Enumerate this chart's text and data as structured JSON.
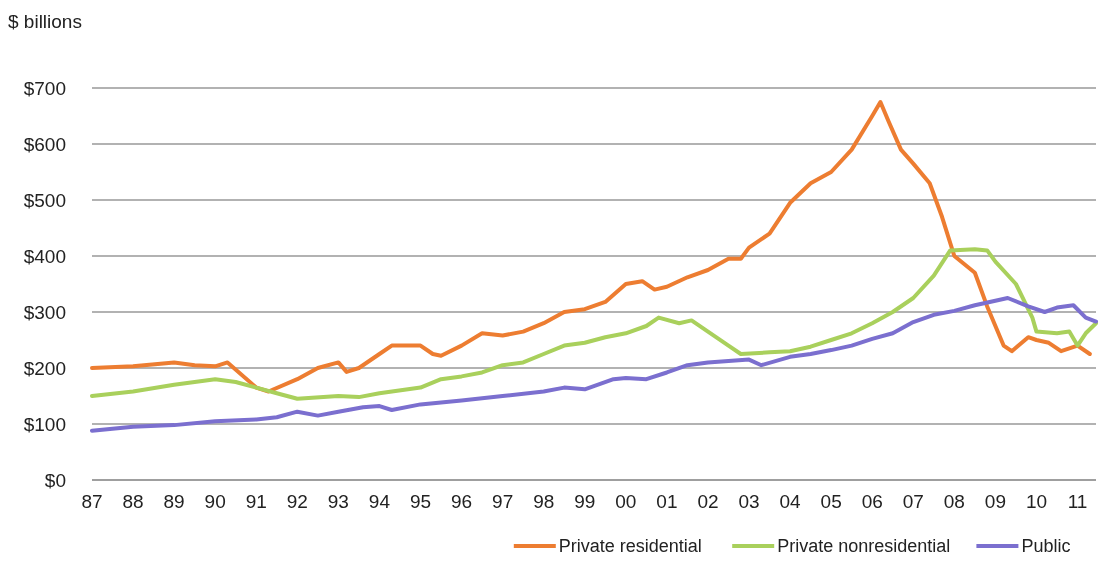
{
  "chart_data": {
    "type": "line",
    "ylabel": "$ billions",
    "xlim": [
      1987,
      2011.45
    ],
    "xticks": [
      {
        "value": 1987,
        "label": "87"
      },
      {
        "value": 1988,
        "label": "88"
      },
      {
        "value": 1989,
        "label": "89"
      },
      {
        "value": 1990,
        "label": "90"
      },
      {
        "value": 1991,
        "label": "91"
      },
      {
        "value": 1992,
        "label": "92"
      },
      {
        "value": 1993,
        "label": "93"
      },
      {
        "value": 1994,
        "label": "94"
      },
      {
        "value": 1995,
        "label": "95"
      },
      {
        "value": 1996,
        "label": "96"
      },
      {
        "value": 1997,
        "label": "97"
      },
      {
        "value": 1998,
        "label": "98"
      },
      {
        "value": 1999,
        "label": "99"
      },
      {
        "value": 2000,
        "label": "00"
      },
      {
        "value": 2001,
        "label": "01"
      },
      {
        "value": 2002,
        "label": "02"
      },
      {
        "value": 2003,
        "label": "03"
      },
      {
        "value": 2004,
        "label": "04"
      },
      {
        "value": 2005,
        "label": "05"
      },
      {
        "value": 2006,
        "label": "06"
      },
      {
        "value": 2007,
        "label": "07"
      },
      {
        "value": 2008,
        "label": "08"
      },
      {
        "value": 2009,
        "label": "09"
      },
      {
        "value": 2010,
        "label": "10"
      },
      {
        "value": 2011,
        "label": "11"
      }
    ],
    "ylim": [
      0,
      700
    ],
    "yticks": [
      {
        "value": 0,
        "label": "$0"
      },
      {
        "value": 100,
        "label": "$100"
      },
      {
        "value": 200,
        "label": "$200"
      },
      {
        "value": 300,
        "label": "$300"
      },
      {
        "value": 400,
        "label": "$400"
      },
      {
        "value": 500,
        "label": "$500"
      },
      {
        "value": 600,
        "label": "$600"
      },
      {
        "value": 700,
        "label": "$700"
      }
    ],
    "grid": "y",
    "legend": "bottom right",
    "marker": "none",
    "line_style": "solid",
    "series": [
      {
        "name": "Private residential",
        "color": "#ed7d31",
        "x": [
          1987,
          1988,
          1989,
          1989.5,
          1990,
          1990.3,
          1991,
          1991.3,
          1992,
          1992.5,
          1993,
          1993.2,
          1993.5,
          1994,
          1994.3,
          1995,
          1995.3,
          1995.5,
          1996,
          1996.5,
          1997,
          1997.5,
          1998,
          1998.5,
          1999,
          1999.5,
          2000,
          2000.4,
          2000.7,
          2001,
          2001.5,
          2002,
          2002.5,
          2002.8,
          2003,
          2003.5,
          2004,
          2004.5,
          2005,
          2005.5,
          2006,
          2006.2,
          2006.4,
          2006.7,
          2007,
          2007.4,
          2007.7,
          2008,
          2008.5,
          2008.8,
          2009.2,
          2009.4,
          2009.8,
          2010,
          2010.3,
          2010.6,
          2011,
          2011.3
        ],
        "values": [
          200,
          203,
          210,
          205,
          203,
          210,
          165,
          158,
          180,
          200,
          210,
          193,
          200,
          225,
          240,
          240,
          225,
          222,
          240,
          262,
          258,
          265,
          280,
          300,
          305,
          318,
          350,
          355,
          340,
          345,
          362,
          375,
          395,
          395,
          415,
          440,
          495,
          530,
          550,
          590,
          650,
          675,
          640,
          590,
          565,
          530,
          470,
          400,
          370,
          310,
          240,
          230,
          255,
          250,
          245,
          230,
          240,
          225
        ]
      },
      {
        "name": "Private nonresidential",
        "color": "#a9d05c",
        "x": [
          1987,
          1988,
          1989,
          1990,
          1990.5,
          1991,
          1991.5,
          1992,
          1993,
          1993.5,
          1994,
          1995,
          1995.5,
          1996,
          1996.5,
          1997,
          1997.5,
          1998,
          1998.5,
          1999,
          1999.5,
          2000,
          2000.5,
          2000.8,
          2001.3,
          2001.6,
          2002,
          2002.5,
          2002.8,
          2003.5,
          2004,
          2004.5,
          2005,
          2005.5,
          2006,
          2006.5,
          2007,
          2007.5,
          2007.9,
          2008.5,
          2008.8,
          2009,
          2009.5,
          2009.9,
          2010,
          2010.5,
          2010.8,
          2011,
          2011.2,
          2011.45
        ],
        "values": [
          150,
          158,
          170,
          180,
          175,
          165,
          155,
          145,
          150,
          148,
          155,
          165,
          180,
          185,
          192,
          205,
          210,
          225,
          240,
          245,
          255,
          262,
          275,
          290,
          280,
          285,
          265,
          240,
          225,
          228,
          230,
          238,
          250,
          262,
          280,
          300,
          325,
          365,
          410,
          412,
          410,
          390,
          350,
          290,
          265,
          262,
          265,
          240,
          262,
          280
        ]
      },
      {
        "name": "Public",
        "color": "#7b6fcf",
        "x": [
          1987,
          1988,
          1989,
          1990,
          1991,
          1991.5,
          1992,
          1992.5,
          1993,
          1993.6,
          1994,
          1994.3,
          1995,
          1996,
          1997,
          1998,
          1998.5,
          1999,
          1999.7,
          2000,
          2000.5,
          2001,
          2001.5,
          2002,
          2003,
          2003.3,
          2004,
          2004.5,
          2005,
          2005.5,
          2006,
          2006.5,
          2007,
          2007.5,
          2008,
          2008.5,
          2009,
          2009.3,
          2009.8,
          2010.2,
          2010.5,
          2010.9,
          2011.2,
          2011.45
        ],
        "values": [
          88,
          95,
          98,
          105,
          108,
          112,
          122,
          115,
          122,
          130,
          132,
          125,
          135,
          142,
          150,
          158,
          165,
          162,
          180,
          182,
          180,
          192,
          205,
          210,
          215,
          205,
          220,
          225,
          232,
          240,
          252,
          262,
          282,
          295,
          302,
          312,
          320,
          325,
          310,
          300,
          308,
          312,
          290,
          283
        ]
      }
    ]
  }
}
